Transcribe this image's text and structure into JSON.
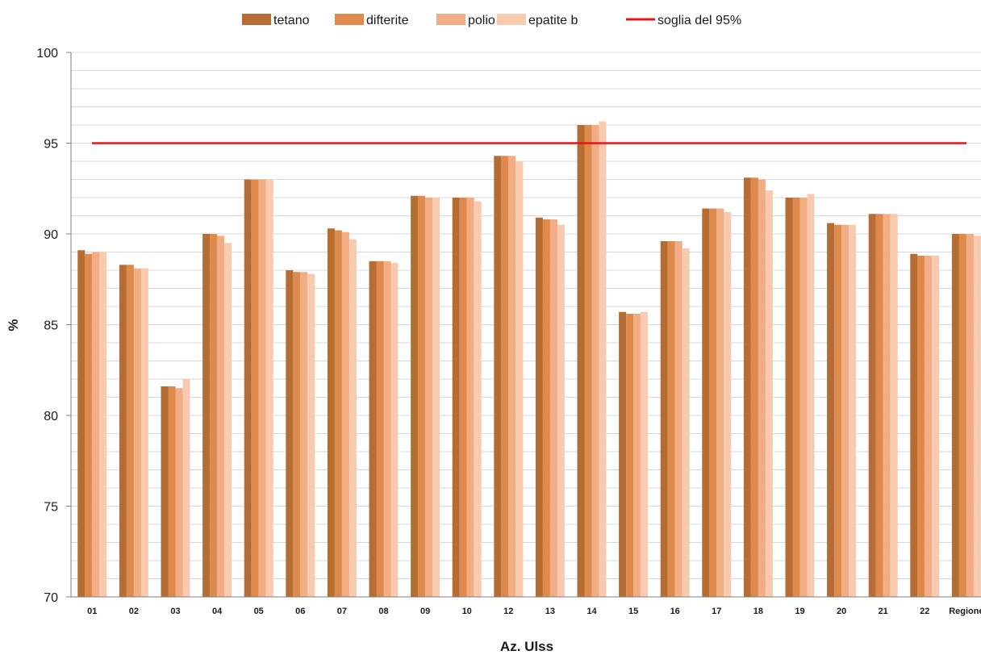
{
  "chart_data": {
    "type": "bar",
    "title": "",
    "xlabel": "Az. Ulss",
    "ylabel": "%",
    "ylim": [
      70,
      100
    ],
    "yticks": [
      70,
      75,
      80,
      85,
      90,
      95,
      100
    ],
    "grid": true,
    "legend_position": "top",
    "categories": [
      "01",
      "02",
      "03",
      "04",
      "05",
      "06",
      "07",
      "08",
      "09",
      "10",
      "12",
      "13",
      "14",
      "15",
      "16",
      "17",
      "18",
      "19",
      "20",
      "21",
      "22",
      "Regione"
    ],
    "series": [
      {
        "name": "tetano",
        "color": "#b56d33",
        "values": [
          89.1,
          88.3,
          81.6,
          90.0,
          93.0,
          88.0,
          90.3,
          88.5,
          92.1,
          92.0,
          94.3,
          90.9,
          96.0,
          85.7,
          89.6,
          91.4,
          93.1,
          92.0,
          90.6,
          91.1,
          88.9,
          90.0
        ]
      },
      {
        "name": "difterite",
        "color": "#de8a4c",
        "values": [
          88.9,
          88.3,
          81.6,
          90.0,
          93.0,
          87.9,
          90.2,
          88.5,
          92.1,
          92.0,
          94.3,
          90.8,
          96.0,
          85.6,
          89.6,
          91.4,
          93.1,
          92.0,
          90.5,
          91.1,
          88.8,
          90.0
        ]
      },
      {
        "name": "polio",
        "color": "#f2ad84",
        "values": [
          89.0,
          88.1,
          81.5,
          89.9,
          93.0,
          87.9,
          90.1,
          88.5,
          92.0,
          92.0,
          94.3,
          90.8,
          96.0,
          85.6,
          89.6,
          91.4,
          93.0,
          92.0,
          90.5,
          91.1,
          88.8,
          90.0
        ]
      },
      {
        "name": "epatite b",
        "color": "#f8cbb0",
        "values": [
          89.0,
          88.1,
          82.0,
          89.5,
          93.0,
          87.8,
          89.7,
          88.4,
          92.0,
          91.8,
          94.0,
          90.5,
          96.2,
          85.7,
          89.2,
          91.2,
          92.4,
          92.2,
          90.5,
          91.1,
          88.8,
          89.9
        ]
      }
    ],
    "threshold": {
      "name": "soglia del 95%",
      "value": 95,
      "color": "#e8141c"
    }
  }
}
